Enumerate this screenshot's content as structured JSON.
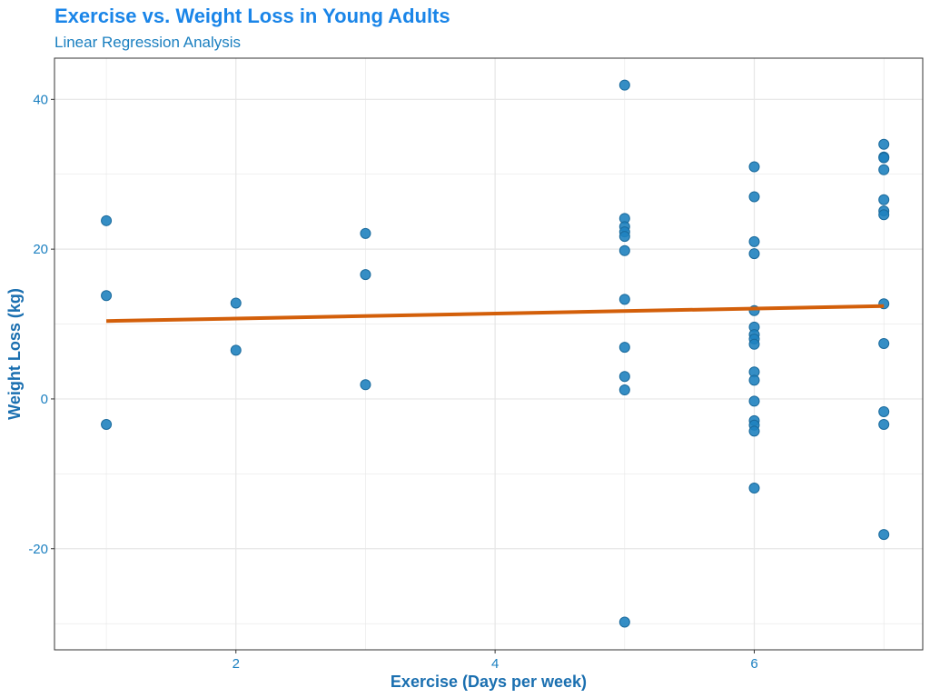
{
  "chart_data": {
    "type": "scatter",
    "title": "Exercise vs. Weight Loss in Young Adults",
    "subtitle": "Linear Regression Analysis",
    "xlabel": "Exercise (Days per week)",
    "ylabel": "Weight Loss (kg)",
    "xlim": [
      0.6,
      7.3
    ],
    "ylim": [
      -33.5,
      45.5
    ],
    "x_ticks": [
      2,
      4,
      6
    ],
    "y_ticks": [
      -20,
      0,
      20,
      40
    ],
    "grid": true,
    "colors": {
      "points": "#1f82bf",
      "point_stroke": "#1a6a9c",
      "line": "#d35f0a",
      "grid": "#e6e6e6",
      "text": "#1a7fc0"
    },
    "points": [
      {
        "x": 1,
        "y": 23.8
      },
      {
        "x": 1,
        "y": 13.8
      },
      {
        "x": 1,
        "y": -3.4
      },
      {
        "x": 2,
        "y": 12.8
      },
      {
        "x": 2,
        "y": 6.5
      },
      {
        "x": 3,
        "y": 22.1
      },
      {
        "x": 3,
        "y": 16.6
      },
      {
        "x": 3,
        "y": 1.9
      },
      {
        "x": 5,
        "y": 41.9
      },
      {
        "x": 5,
        "y": 24.1
      },
      {
        "x": 5,
        "y": 23.0
      },
      {
        "x": 5,
        "y": 22.3
      },
      {
        "x": 5,
        "y": 21.7
      },
      {
        "x": 5,
        "y": 19.8
      },
      {
        "x": 5,
        "y": 13.3
      },
      {
        "x": 5,
        "y": 6.9
      },
      {
        "x": 5,
        "y": 3.0
      },
      {
        "x": 5,
        "y": 1.2
      },
      {
        "x": 5,
        "y": -29.8
      },
      {
        "x": 6,
        "y": 31.0
      },
      {
        "x": 6,
        "y": 27.0
      },
      {
        "x": 6,
        "y": 21.0
      },
      {
        "x": 6,
        "y": 19.4
      },
      {
        "x": 6,
        "y": 11.8
      },
      {
        "x": 6,
        "y": 9.6
      },
      {
        "x": 6,
        "y": 8.6
      },
      {
        "x": 6,
        "y": 8.0
      },
      {
        "x": 6,
        "y": 7.3
      },
      {
        "x": 6,
        "y": 3.6
      },
      {
        "x": 6,
        "y": 2.5
      },
      {
        "x": 6,
        "y": -0.3
      },
      {
        "x": 6,
        "y": -2.9
      },
      {
        "x": 6,
        "y": -3.5
      },
      {
        "x": 6,
        "y": -4.3
      },
      {
        "x": 6,
        "y": -11.9
      },
      {
        "x": 7,
        "y": 34.0
      },
      {
        "x": 7,
        "y": 32.3
      },
      {
        "x": 7,
        "y": 32.2
      },
      {
        "x": 7,
        "y": 30.6
      },
      {
        "x": 7,
        "y": 26.6
      },
      {
        "x": 7,
        "y": 25.1
      },
      {
        "x": 7,
        "y": 24.6
      },
      {
        "x": 7,
        "y": 12.7
      },
      {
        "x": 7,
        "y": 7.4
      },
      {
        "x": 7,
        "y": -1.7
      },
      {
        "x": 7,
        "y": -3.4
      },
      {
        "x": 7,
        "y": -18.1
      }
    ],
    "regression_line": {
      "x": [
        1,
        7
      ],
      "y": [
        10.4,
        12.4
      ]
    }
  }
}
